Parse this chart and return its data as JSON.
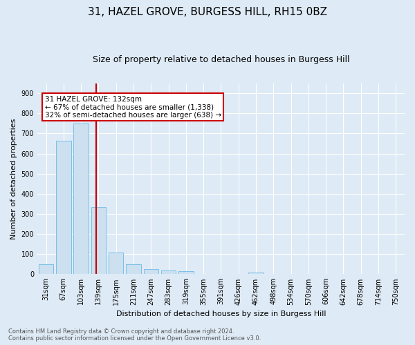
{
  "title1": "31, HAZEL GROVE, BURGESS HILL, RH15 0BZ",
  "title2": "Size of property relative to detached houses in Burgess Hill",
  "xlabel": "Distribution of detached houses by size in Burgess Hill",
  "ylabel": "Number of detached properties",
  "footer1": "Contains HM Land Registry data © Crown copyright and database right 2024.",
  "footer2": "Contains public sector information licensed under the Open Government Licence v3.0.",
  "bar_labels": [
    "31sqm",
    "67sqm",
    "103sqm",
    "139sqm",
    "175sqm",
    "211sqm",
    "247sqm",
    "283sqm",
    "319sqm",
    "355sqm",
    "391sqm",
    "426sqm",
    "462sqm",
    "498sqm",
    "534sqm",
    "570sqm",
    "606sqm",
    "642sqm",
    "678sqm",
    "714sqm",
    "750sqm"
  ],
  "bar_values": [
    50,
    665,
    750,
    335,
    108,
    50,
    25,
    18,
    14,
    0,
    0,
    0,
    8,
    0,
    0,
    0,
    0,
    0,
    0,
    0,
    0
  ],
  "bar_color": "#cce0f0",
  "bar_edge_color": "#7bbfe8",
  "vline_x": 2.85,
  "vline_color": "#cc0000",
  "annotation_text": "31 HAZEL GROVE: 132sqm\n← 67% of detached houses are smaller (1,338)\n32% of semi-detached houses are larger (638) →",
  "annotation_box_color": "#ffffff",
  "annotation_box_edge": "#cc0000",
  "ylim": [
    0,
    950
  ],
  "yticks": [
    0,
    100,
    200,
    300,
    400,
    500,
    600,
    700,
    800,
    900
  ],
  "bg_color": "#deeaf5",
  "plot_bg_color": "#deeaf5",
  "grid_color": "#ffffff",
  "title1_fontsize": 11,
  "title2_fontsize": 9,
  "ylabel_fontsize": 8,
  "xlabel_fontsize": 8,
  "tick_fontsize": 7,
  "footer_fontsize": 6,
  "annot_fontsize": 7.5
}
